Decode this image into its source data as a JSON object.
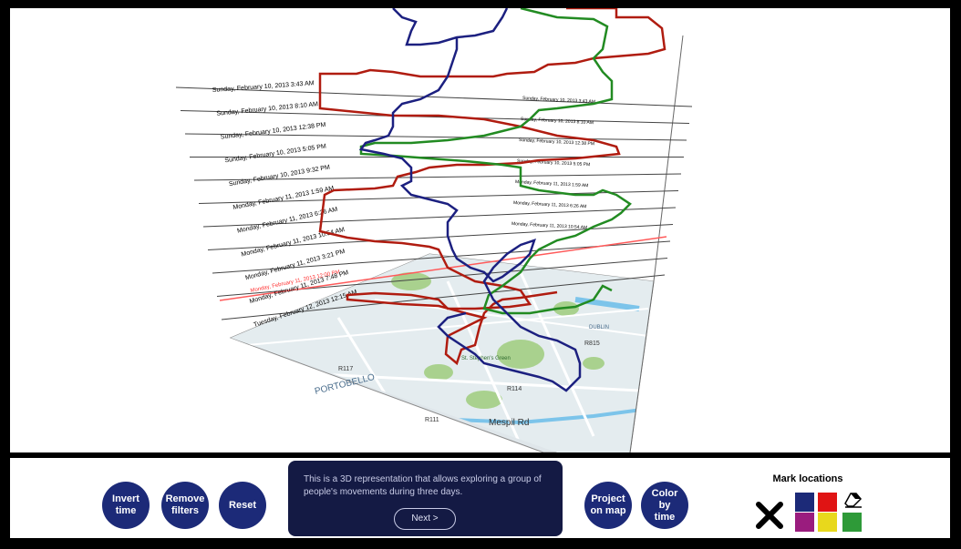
{
  "viewport": {
    "map_labels": [
      "PORTOBELLO",
      "Mespil Rd",
      "R111",
      "R114",
      "R117",
      "R815",
      "St. Stephen's Green",
      "DUBLIN"
    ],
    "time_labels_left": [
      "Sunday, February 10, 2013 3:43 AM",
      "Sunday, February 10, 2013 8:10 AM",
      "Sunday, February 10, 2013 12:38 PM",
      "Sunday, February 10, 2013 5:05 PM",
      "Sunday, February 10, 2013 9:32 PM",
      "Monday, February 11, 2013 1:59 AM",
      "Monday, February 11, 2013 6:26 AM",
      "Monday, February 11, 2013 10:54 AM",
      "Monday, February 11, 2013 3:21 PM",
      "Monday, February 11, 2013 7:48 PM",
      "Tuesday, February 12, 2013 12:15 AM"
    ],
    "time_labels_right": [
      "Sunday, February 10, 2013 3:43 AM",
      "Sunday, February 10, 2013 8:10 AM",
      "Sunday, February 10, 2013 12:38 PM",
      "Sunday, February 10, 2013 5:05 PM",
      "Monday, February 11, 2013 1:59 AM",
      "Monday, February 11, 2013 6:26 AM",
      "Monday, February 11, 2013 10:54 AM"
    ],
    "highlight_label": "Monday, February 11, 2013 12:00 PM",
    "colors": {
      "red_trajectory": "#b01c10",
      "green_trajectory": "#228b22",
      "blue_trajectory": "#1c2080",
      "highlight": "#ff5a5a",
      "map_water": "#a8d4ef",
      "map_park": "#a9d18e"
    }
  },
  "toolbar": {
    "invert_time": "Invert\ntime",
    "remove_filters": "Remove\nfilters",
    "reset": "Reset",
    "info_text": "This is a 3D representation that allows exploring a group of people's movements during three days.",
    "next": "Next >",
    "project_on_map": "Project\non map",
    "color_by_time": "Color\nby\ntime",
    "mark_locations": "Mark locations",
    "swatches": {
      "blue": "#1c2a78",
      "red": "#e01414",
      "purple": "#9a1c7e",
      "yellow": "#e8d81c",
      "green": "#2e9a38"
    }
  }
}
